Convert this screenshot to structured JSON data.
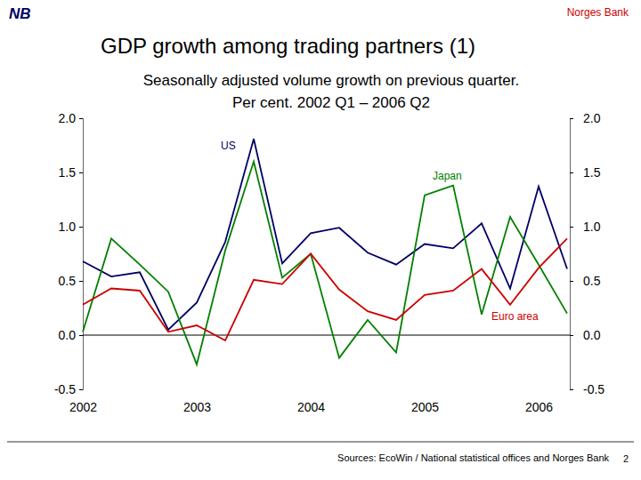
{
  "slide": {
    "logo": "NB",
    "organization": "Norges Bank",
    "page": 2
  },
  "chart_data": {
    "type": "line",
    "title": "GDP growth among trading partners (1)",
    "subtitle": [
      "Seasonally adjusted volume growth on previous quarter.",
      "Per cent. 2002 Q1 – 2006 Q2"
    ],
    "source": "Sources: EcoWin / National statistical offices and Norges Bank",
    "categories": [
      "2002",
      null,
      null,
      null,
      "2003",
      null,
      null,
      null,
      "2004",
      null,
      null,
      null,
      "2005",
      null,
      null,
      null,
      "2006",
      null
    ],
    "series": [
      {
        "name": "US",
        "color": "#000066",
        "values": [
          0.68,
          0.54,
          0.58,
          0.05,
          0.3,
          0.86,
          1.81,
          0.66,
          0.94,
          0.99,
          0.76,
          0.65,
          0.84,
          0.8,
          1.03,
          0.43,
          1.37,
          0.61
        ]
      },
      {
        "name": "Japan",
        "color": "#008000",
        "values": [
          0.03,
          0.89,
          0.65,
          0.4,
          -0.27,
          0.78,
          1.6,
          0.53,
          0.75,
          -0.21,
          0.14,
          -0.16,
          1.29,
          1.38,
          0.19,
          1.09,
          0.65,
          0.2
        ]
      },
      {
        "name": "Euro area",
        "color": "#cc0000",
        "values": [
          0.28,
          0.43,
          0.41,
          0.03,
          0.09,
          -0.05,
          0.51,
          0.47,
          0.75,
          0.42,
          0.22,
          0.14,
          0.37,
          0.41,
          0.61,
          0.28,
          0.62,
          0.89
        ]
      }
    ],
    "ylim": [
      -0.5,
      2.0
    ],
    "yticks": [
      -0.5,
      {
        "value": 0,
        "label": "0.0"
      },
      0.5,
      {
        "value": 1,
        "label": "1.0"
      },
      1.5,
      {
        "value": 2,
        "label": "2.0"
      }
    ]
  }
}
